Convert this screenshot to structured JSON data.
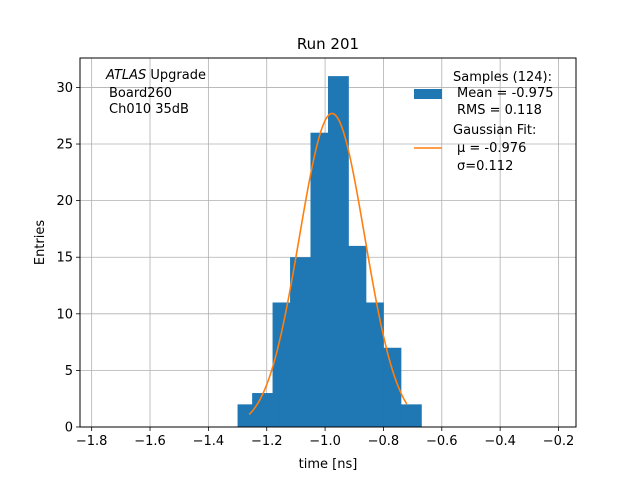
{
  "chart_data": {
    "type": "bar",
    "title": "Run 201",
    "xlabel": "time [ns]",
    "ylabel": "Entries",
    "xlim": [
      -1.84,
      -0.14
    ],
    "ylim": [
      0,
      32.6
    ],
    "grid": true,
    "x_ticks": [
      -1.8,
      -1.6,
      -1.4,
      -1.2,
      -1.0,
      -0.8,
      -0.6,
      -0.4,
      -0.2
    ],
    "x_tick_labels": [
      "−1.8",
      "−1.6",
      "−1.4",
      "−1.2",
      "−1.0",
      "−0.8",
      "−0.6",
      "−0.4",
      "−0.2"
    ],
    "y_ticks": [
      0,
      5,
      10,
      15,
      20,
      25,
      30
    ],
    "y_tick_labels": [
      "0",
      "5",
      "10",
      "15",
      "20",
      "25",
      "30"
    ],
    "annotation": {
      "italic_part": "ATLAS",
      "line1_rest": " Upgrade",
      "line2": "Board260",
      "line3": "Ch010 35dB"
    },
    "series": [
      {
        "name": "Samples (124):",
        "type": "histogram",
        "color": "#1f77b4",
        "bins": [
          {
            "x0": -1.3,
            "x1": -1.25,
            "count": 2
          },
          {
            "x0": -1.25,
            "x1": -1.18,
            "count": 3
          },
          {
            "x0": -1.18,
            "x1": -1.12,
            "count": 11
          },
          {
            "x0": -1.12,
            "x1": -1.05,
            "count": 15
          },
          {
            "x0": -1.05,
            "x1": -0.99,
            "count": 26
          },
          {
            "x0": -0.99,
            "x1": -0.92,
            "count": 31
          },
          {
            "x0": -0.92,
            "x1": -0.86,
            "count": 16
          },
          {
            "x0": -0.86,
            "x1": -0.8,
            "count": 11
          },
          {
            "x0": -0.8,
            "x1": -0.74,
            "count": 7
          },
          {
            "x0": -0.74,
            "x1": -0.67,
            "count": 2
          }
        ],
        "legend_lines": [
          "Samples (124):",
          "Mean = -0.975",
          "RMS = 0.118"
        ]
      },
      {
        "name": "Gaussian Fit:",
        "type": "line",
        "color": "#ff7f0e",
        "fit": {
          "amplitude": 27.7,
          "mu": -0.976,
          "sigma": 0.112,
          "x_start": -1.26,
          "x_end": -0.72
        },
        "legend_lines": [
          "Gaussian Fit:",
          "μ = -0.976",
          "σ=0.112"
        ]
      }
    ]
  }
}
